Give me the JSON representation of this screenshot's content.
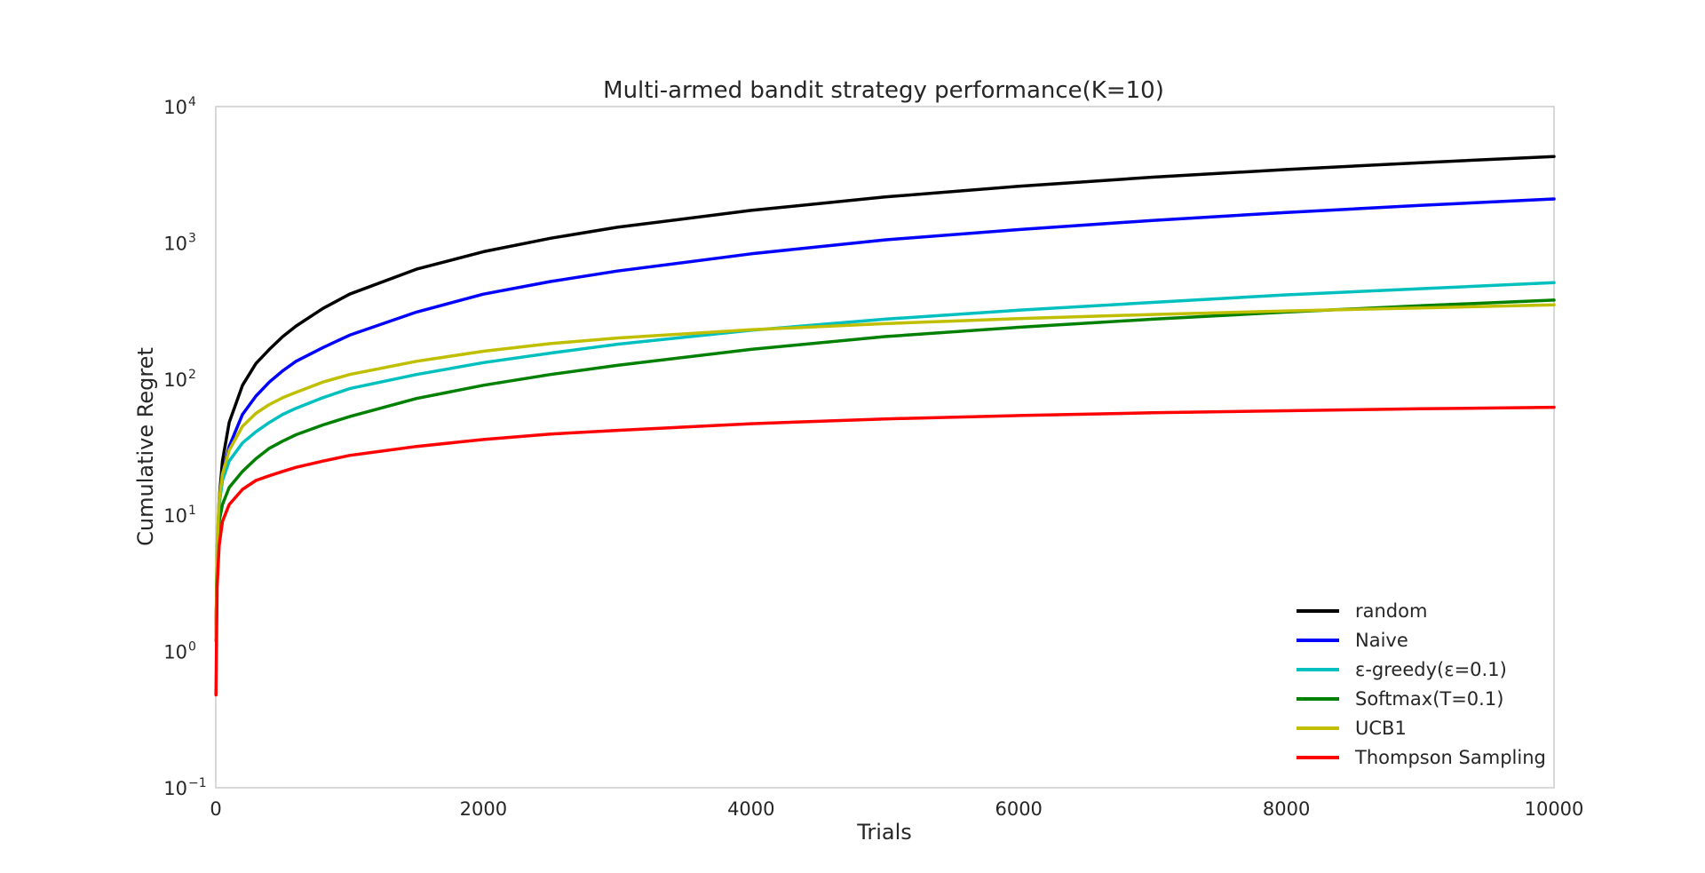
{
  "chart_data": {
    "type": "line",
    "title": "Multi-armed bandit strategy performance(K=10)",
    "xlabel": "Trials",
    "ylabel": "Cumulative Regret",
    "xlim": [
      0,
      10000
    ],
    "ylim": [
      0.1,
      10000
    ],
    "yscale": "log",
    "grid": false,
    "legend_position": "bottom-right",
    "x_ticks": [
      {
        "value": 0,
        "label": "0"
      },
      {
        "value": 2000,
        "label": "2000"
      },
      {
        "value": 4000,
        "label": "4000"
      },
      {
        "value": 6000,
        "label": "6000"
      },
      {
        "value": 8000,
        "label": "8000"
      },
      {
        "value": 10000,
        "label": "10000"
      }
    ],
    "y_ticks": [
      {
        "value": 0.1,
        "base": "10",
        "exp": "−1"
      },
      {
        "value": 1,
        "base": "10",
        "exp": "0"
      },
      {
        "value": 10,
        "base": "10",
        "exp": "1"
      },
      {
        "value": 100,
        "base": "10",
        "exp": "2"
      },
      {
        "value": 1000,
        "base": "10",
        "exp": "3"
      },
      {
        "value": 10000,
        "base": "10",
        "exp": "4"
      }
    ],
    "series": [
      {
        "name": "random",
        "color": "#000000",
        "x": [
          1,
          10,
          25,
          50,
          100,
          200,
          300,
          400,
          500,
          600,
          800,
          1000,
          1500,
          2000,
          2500,
          3000,
          4000,
          5000,
          6000,
          7000,
          8000,
          9000,
          10000
        ],
        "y": [
          1.2,
          5,
          13,
          25,
          48,
          90,
          130,
          165,
          205,
          245,
          330,
          420,
          640,
          860,
          1080,
          1300,
          1730,
          2170,
          2600,
          3030,
          3450,
          3870,
          4300
        ]
      },
      {
        "name": "Naive",
        "color": "#0000ff",
        "x": [
          1,
          10,
          25,
          50,
          100,
          200,
          300,
          400,
          500,
          600,
          800,
          1000,
          1500,
          2000,
          2500,
          3000,
          4000,
          5000,
          6000,
          7000,
          8000,
          9000,
          10000
        ],
        "y": [
          1.2,
          5,
          12,
          20,
          32,
          55,
          75,
          95,
          115,
          135,
          170,
          210,
          310,
          420,
          520,
          620,
          830,
          1050,
          1250,
          1460,
          1670,
          1880,
          2100
        ]
      },
      {
        "name": "ε-greedy(ε=0.1)",
        "color": "#00bfbf",
        "x": [
          1,
          10,
          25,
          50,
          100,
          200,
          300,
          400,
          500,
          600,
          800,
          1000,
          1500,
          2000,
          2500,
          3000,
          4000,
          5000,
          6000,
          7000,
          8000,
          9000,
          10000
        ],
        "y": [
          1.2,
          6,
          12,
          18,
          25,
          34,
          41,
          48,
          55,
          61,
          73,
          85,
          108,
          132,
          155,
          180,
          228,
          275,
          320,
          365,
          415,
          460,
          510
        ]
      },
      {
        "name": "Softmax(T=0.1)",
        "color": "#008000",
        "x": [
          1,
          10,
          25,
          50,
          100,
          200,
          300,
          400,
          500,
          600,
          800,
          1000,
          1500,
          2000,
          2500,
          3000,
          4000,
          5000,
          6000,
          7000,
          8000,
          9000,
          10000
        ],
        "y": [
          1.2,
          5,
          9,
          12,
          16,
          21,
          26,
          31,
          35,
          39,
          46,
          53,
          72,
          90,
          108,
          126,
          165,
          205,
          240,
          275,
          310,
          345,
          380
        ]
      },
      {
        "name": "UCB1",
        "color": "#bfbf00",
        "x": [
          1,
          10,
          25,
          50,
          100,
          200,
          300,
          400,
          500,
          600,
          800,
          1000,
          1500,
          2000,
          2500,
          3000,
          4000,
          5000,
          6000,
          7000,
          8000,
          9000,
          10000
        ],
        "y": [
          1.2,
          6,
          13,
          20,
          30,
          45,
          56,
          65,
          73,
          80,
          95,
          108,
          135,
          160,
          182,
          200,
          230,
          255,
          278,
          298,
          316,
          333,
          350
        ]
      },
      {
        "name": "Thompson Sampling",
        "color": "#ff0000",
        "x": [
          1,
          10,
          25,
          50,
          100,
          200,
          300,
          400,
          500,
          600,
          800,
          1000,
          1500,
          2000,
          2500,
          3000,
          4000,
          5000,
          6000,
          7000,
          8000,
          9000,
          10000
        ],
        "y": [
          0.48,
          3,
          6,
          9,
          12,
          15.5,
          18,
          19.5,
          21,
          22.5,
          25,
          27.5,
          32,
          36,
          39.5,
          42,
          47,
          51,
          54,
          56.5,
          58.5,
          60.5,
          62
        ]
      }
    ]
  }
}
